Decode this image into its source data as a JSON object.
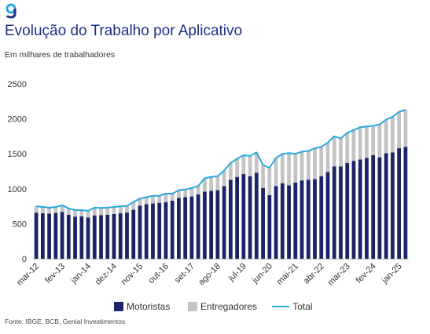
{
  "header": {
    "logo": "g",
    "logo_icon": "genial-logo-icon",
    "title": "Evolução do Trabalho por Aplicativo",
    "subtitle": "Em milhares de trabalhadores"
  },
  "footer": {
    "source": "Fonte: IBGE, BCB, Genial Investimentos"
  },
  "colors": {
    "motoristas": "#1a2467",
    "entregadores": "#c4c4c4",
    "total": "#29a8e0",
    "title": "#1f2f86"
  },
  "chart_data": {
    "type": "bar",
    "stacked": true,
    "title": "Evolução do Trabalho por Aplicativo",
    "ylabel": "",
    "xlabel": "",
    "ylim": [
      0,
      2500
    ],
    "yticks": [
      0,
      500,
      1000,
      1500,
      2000,
      2500
    ],
    "grid": false,
    "legend_position": "bottom",
    "tick_labels": [
      "mar-12",
      "fev-13",
      "jan-14",
      "dez-14",
      "nov-15",
      "out-16",
      "set-17",
      "ago-18",
      "jul-19",
      "jun-20",
      "mai-21",
      "abr-22",
      "mar-23",
      "fev-24",
      "jan-25"
    ],
    "tick_positions": [
      0,
      4,
      8,
      12,
      16,
      20,
      24,
      28,
      32,
      36,
      40,
      44,
      48,
      52,
      56
    ],
    "series": [
      {
        "name": "Motoristas",
        "kind": "bar",
        "values": [
          660,
          650,
          645,
          655,
          670,
          630,
          600,
          605,
          590,
          620,
          625,
          630,
          640,
          650,
          660,
          700,
          760,
          780,
          790,
          800,
          810,
          830,
          870,
          880,
          890,
          920,
          960,
          970,
          980,
          1040,
          1130,
          1170,
          1210,
          1180,
          1230,
          1010,
          910,
          1040,
          1080,
          1050,
          1090,
          1120,
          1130,
          1140,
          1180,
          1240,
          1320,
          1320,
          1370,
          1400,
          1420,
          1440,
          1480,
          1450,
          1510,
          1520,
          1580,
          1600
        ]
      },
      {
        "name": "Entregadores",
        "kind": "bar",
        "values": [
          90,
          90,
          85,
          85,
          95,
          90,
          95,
          90,
          95,
          110,
          100,
          100,
          100,
          100,
          95,
          110,
          100,
          100,
          110,
          100,
          120,
          100,
          110,
          110,
          120,
          120,
          190,
          200,
          200,
          220,
          240,
          260,
          270,
          290,
          290,
          330,
          390,
          400,
          420,
          460,
          410,
          410,
          410,
          440,
          420,
          420,
          430,
          400,
          430,
          440,
          460,
          450,
          420,
          470,
          480,
          510,
          520,
          530
        ]
      },
      {
        "name": "Total",
        "kind": "line",
        "values": [
          750,
          740,
          730,
          740,
          765,
          720,
          695,
          695,
          685,
          730,
          725,
          730,
          740,
          750,
          755,
          810,
          860,
          880,
          900,
          900,
          930,
          930,
          980,
          990,
          1010,
          1040,
          1150,
          1170,
          1180,
          1260,
          1370,
          1430,
          1480,
          1470,
          1520,
          1340,
          1300,
          1440,
          1500,
          1510,
          1500,
          1530,
          1540,
          1580,
          1600,
          1660,
          1750,
          1720,
          1800,
          1840,
          1880,
          1890,
          1900,
          1920,
          1990,
          2030,
          2100,
          2130
        ]
      }
    ]
  }
}
